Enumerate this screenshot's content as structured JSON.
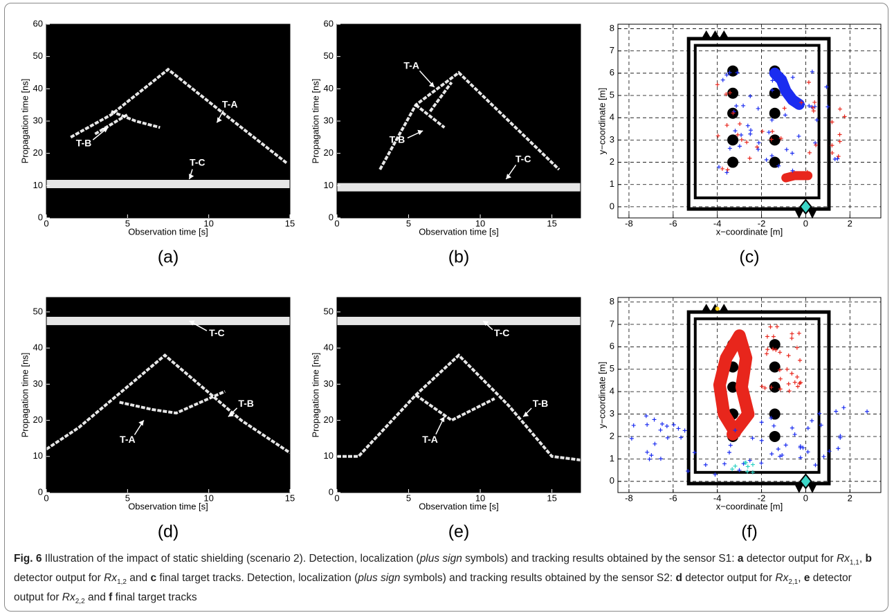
{
  "figure": {
    "panels": [
      {
        "label": "(a)",
        "xlabel": "Observation time [s]",
        "ylabel": "Propagation time [ns]",
        "xlim": [
          0,
          15
        ],
        "ylim": [
          0,
          60
        ],
        "xticks": [
          0,
          5,
          10,
          15
        ],
        "yticks": [
          0,
          10,
          20,
          30,
          40,
          50,
          60
        ],
        "annotations": [
          "T-A",
          "T-B",
          "T-C"
        ]
      },
      {
        "label": "(b)",
        "xlabel": "Observation time [s]",
        "ylabel": "Propagation time [ns]",
        "xlim": [
          0,
          17
        ],
        "ylim": [
          0,
          60
        ],
        "xticks": [
          0,
          5,
          10,
          15
        ],
        "yticks": [
          0,
          10,
          20,
          30,
          40,
          50,
          60
        ],
        "annotations": [
          "T-A",
          "T-B",
          "T-C"
        ]
      },
      {
        "label": "(c)",
        "xlabel": "x−coordinate [m]",
        "ylabel": "y−coordinate [m]",
        "xlim": [
          -8.5,
          3.4
        ],
        "ylim": [
          -0.5,
          8.2
        ],
        "xticks": [
          -8,
          -6,
          -4,
          -2,
          0,
          2
        ],
        "yticks": [
          0,
          1,
          2,
          3,
          4,
          5,
          6,
          7,
          8
        ],
        "annotations": []
      },
      {
        "label": "(d)",
        "xlabel": "Observation time [s]",
        "ylabel": "Propagation time [ns]",
        "xlim": [
          0,
          15
        ],
        "ylim": [
          0,
          54
        ],
        "xticks": [
          0,
          5,
          10,
          15
        ],
        "yticks": [
          0,
          10,
          20,
          30,
          40,
          50
        ],
        "annotations": [
          "T-C",
          "T-B",
          "T-A"
        ]
      },
      {
        "label": "(e)",
        "xlabel": "Observation time [s]",
        "ylabel": "Propagation time [ns]",
        "xlim": [
          0,
          17
        ],
        "ylim": [
          0,
          54
        ],
        "xticks": [
          0,
          5,
          10,
          15
        ],
        "yticks": [
          0,
          10,
          20,
          30,
          40,
          50
        ],
        "annotations": [
          "T-C",
          "T-B",
          "T-A"
        ]
      },
      {
        "label": "(f)",
        "xlabel": "x−coordinate [m]",
        "ylabel": "y−coordinate [m]",
        "xlim": [
          -8.5,
          3.4
        ],
        "ylim": [
          -0.5,
          8.2
        ],
        "xticks": [
          -8,
          -6,
          -4,
          -2,
          0,
          2
        ],
        "yticks": [
          0,
          1,
          2,
          3,
          4,
          5,
          6,
          7,
          8
        ],
        "annotations": []
      }
    ],
    "caption": {
      "parts": [
        "Fig. 6",
        " Illustration of the impact of static shielding (scenario 2). Detection, localization (",
        "plus sign",
        " symbols) and tracking results obtained by the sensor S1: ",
        "a",
        " detector output for ",
        "Rx",
        "1,1",
        ", ",
        "b",
        " detector output for ",
        "Rx",
        "1,2",
        " and ",
        "c",
        " final target tracks. Detection, localization (",
        "plus sign",
        " symbols) and tracking results obtained by the sensor S2: ",
        "d",
        " detector output for ",
        "Rx",
        "2,1",
        ", ",
        "e",
        " detector output for ",
        "Rx",
        "2,2",
        " and ",
        "f",
        " final target tracks"
      ]
    }
  }
}
